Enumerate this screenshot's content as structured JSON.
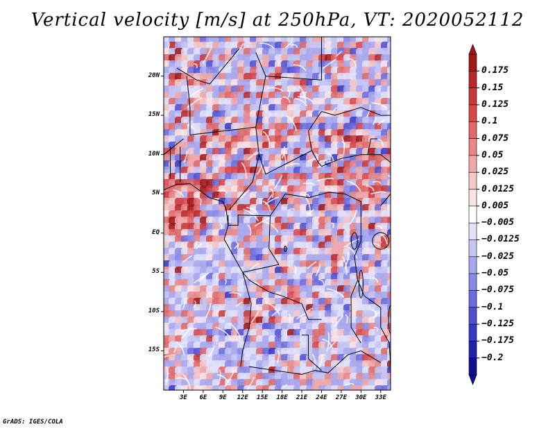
{
  "title": "Vertical velocity [m/s] at 250hPa, VT: 2020052112",
  "credit": "GrADS: IGES/COLA",
  "map": {
    "lon_min": 0,
    "lon_max": 34.5,
    "lat_min": -20,
    "lat_max": 25,
    "lat_labels": [
      {
        "lat": 20,
        "text": "20N"
      },
      {
        "lat": 15,
        "text": "15N"
      },
      {
        "lat": 10,
        "text": "10N"
      },
      {
        "lat": 5,
        "text": "5N"
      },
      {
        "lat": 0,
        "text": "EQ"
      },
      {
        "lat": -5,
        "text": "5S"
      },
      {
        "lat": -10,
        "text": "10S"
      },
      {
        "lat": -15,
        "text": "15S"
      }
    ],
    "lon_labels": [
      {
        "lon": 3,
        "text": "3E"
      },
      {
        "lon": 6,
        "text": "6E"
      },
      {
        "lon": 9,
        "text": "9E"
      },
      {
        "lon": 12,
        "text": "12E"
      },
      {
        "lon": 15,
        "text": "15E"
      },
      {
        "lon": 18,
        "text": "18E"
      },
      {
        "lon": 21,
        "text": "21E"
      },
      {
        "lon": 24,
        "text": "24E"
      },
      {
        "lon": 27,
        "text": "27E"
      },
      {
        "lon": 30,
        "text": "30E"
      },
      {
        "lon": 33,
        "text": "33E"
      }
    ]
  },
  "colorbar": {
    "labels": [
      "0.175",
      "0.15",
      "0.125",
      "0.1",
      "0.075",
      "0.05",
      "0.025",
      "0.0125",
      "0.005",
      "−0.005",
      "−0.0125",
      "−0.025",
      "−0.05",
      "−0.075",
      "−0.1",
      "−0.125",
      "−0.175",
      "−0.2"
    ],
    "colors": [
      "#a01818",
      "#b82828",
      "#c83838",
      "#d84848",
      "#e06868",
      "#e88888",
      "#f0a8a8",
      "#f6c8c8",
      "#fbe4e4",
      "#ffffff",
      "#e2e2fa",
      "#c6c6f4",
      "#a8a8ee",
      "#8a8ae6",
      "#6c6cde",
      "#5050d0",
      "#3838c0",
      "#2222a8",
      "#101090"
    ]
  }
}
